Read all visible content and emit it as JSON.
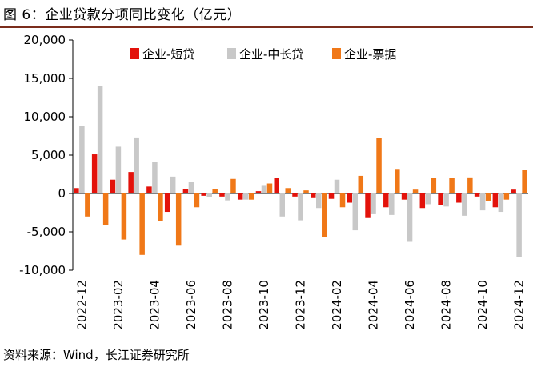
{
  "title": "图 6：企业贷款分项同比变化（亿元）",
  "source": "资料来源：Wind，长江证券研究所",
  "chart_data": {
    "type": "bar",
    "title": "图 6：企业贷款分项同比变化（亿元）",
    "xlabel": "",
    "ylabel": "",
    "ylim": [
      -10000,
      20000
    ],
    "yticks": [
      20000,
      15000,
      10000,
      5000,
      0,
      -5000,
      -10000
    ],
    "ytick_labels": [
      "20,000",
      "15,000",
      "10,000",
      "5,000",
      "0",
      "-5,000",
      "-10,000"
    ],
    "legend_position": "top",
    "grid": false,
    "categories": [
      "2022-12",
      "2023-01",
      "2023-02",
      "2023-03",
      "2023-04",
      "2023-05",
      "2023-06",
      "2023-07",
      "2023-08",
      "2023-09",
      "2023-10",
      "2023-11",
      "2023-12",
      "2024-01",
      "2024-02",
      "2024-03",
      "2024-04",
      "2024-05",
      "2024-06",
      "2024-07",
      "2024-08",
      "2024-09",
      "2024-10",
      "2024-11",
      "2024-12"
    ],
    "xtick_labels": [
      "2022-12",
      "",
      "2023-02",
      "",
      "2023-04",
      "",
      "2023-06",
      "",
      "2023-08",
      "",
      "2023-10",
      "",
      "2023-12",
      "",
      "2024-02",
      "",
      "2024-04",
      "",
      "2024-06",
      "",
      "2024-08",
      "",
      "2024-10",
      "",
      "2024-12"
    ],
    "series": [
      {
        "name": "企业-短贷",
        "color": "#e3120b",
        "values": [
          700,
          5100,
          1800,
          2800,
          900,
          -2400,
          600,
          -300,
          -400,
          -800,
          300,
          2000,
          -400,
          -600,
          -700,
          -1200,
          -3200,
          -1800,
          -800,
          -1900,
          -1500,
          -1200,
          -400,
          -1800,
          500
        ]
      },
      {
        "name": "企业-中长贷",
        "color": "#c8c8c8",
        "values": [
          8800,
          14000,
          6100,
          7300,
          4100,
          2200,
          1500,
          -500,
          -900,
          -800,
          1100,
          -3000,
          -3500,
          -1900,
          1800,
          -4800,
          -2700,
          -2800,
          -6300,
          -1400,
          -1700,
          -2900,
          -2200,
          -2400,
          -8300
        ]
      },
      {
        "name": "企业-票据",
        "color": "#f07818",
        "values": [
          -3000,
          -4100,
          -6000,
          -8000,
          -3600,
          -6800,
          -1800,
          600,
          1900,
          -800,
          1300,
          700,
          400,
          -5700,
          -1800,
          2300,
          7200,
          3200,
          500,
          2000,
          2000,
          2100,
          -1000,
          -800,
          3100
        ]
      }
    ]
  }
}
